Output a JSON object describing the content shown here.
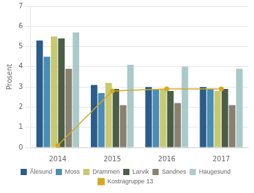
{
  "chart_data": {
    "type": "bar",
    "ylabel": "Prosent",
    "categories": [
      "2014",
      "2015",
      "2016",
      "2017"
    ],
    "series": [
      {
        "name": "Ålesund",
        "color": "#2b5c8a",
        "values": [
          5.3,
          3.1,
          3.0,
          3.0
        ]
      },
      {
        "name": "Moss",
        "color": "#4a8db5",
        "values": [
          4.5,
          2.7,
          2.9,
          2.9
        ]
      },
      {
        "name": "Drammen",
        "color": "#c8c870",
        "values": [
          5.5,
          3.2,
          2.9,
          2.8
        ]
      },
      {
        "name": "Larvik",
        "color": "#4a5e48",
        "values": [
          5.4,
          2.9,
          2.8,
          2.9
        ]
      },
      {
        "name": "Sandnes",
        "color": "#8a8070",
        "values": [
          3.9,
          2.1,
          2.2,
          2.1
        ]
      },
      {
        "name": "Haugesund",
        "color": "#aacaca",
        "values": [
          5.7,
          4.1,
          4.0,
          3.9
        ]
      },
      {
        "name": "Kostragruppe 13",
        "color": "#d4a820",
        "type": "line",
        "marker": "circle",
        "line_style": "solid",
        "values": [
          0.1,
          2.8,
          2.9,
          2.9
        ]
      }
    ],
    "ylim": [
      0,
      7
    ],
    "yticks": [
      0,
      1,
      2,
      3,
      4,
      5,
      6,
      7
    ],
    "grid": true,
    "legend": "bottom"
  }
}
